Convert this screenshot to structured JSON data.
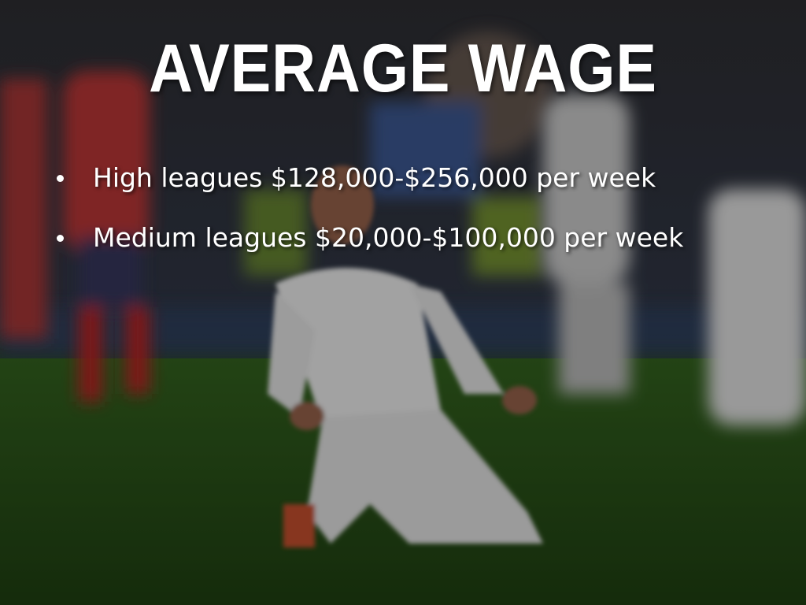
{
  "title": "AVERAGE WAGE",
  "bullets": [
    "High leagues $128,000-$256,000 per week",
    "Medium leagues $20,000-$100,000 per week"
  ]
}
